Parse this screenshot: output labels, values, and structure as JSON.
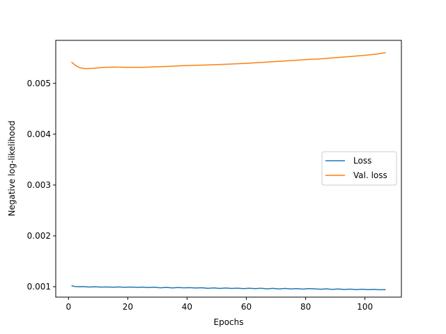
{
  "chart_data": {
    "type": "line",
    "xlabel": "Epochs",
    "ylabel": "Negative log-likelihood",
    "xlim": [
      -4.3,
      112.3
    ],
    "ylim": [
      0.000795,
      0.005846
    ],
    "x_ticks": [
      0,
      20,
      40,
      60,
      80,
      100
    ],
    "y_ticks": [
      0.001,
      0.002,
      0.003,
      0.004,
      0.005
    ],
    "y_tick_labels": [
      "0.001",
      "0.002",
      "0.003",
      "0.004",
      "0.005"
    ],
    "grid": false,
    "legend_position": "center-right",
    "series": [
      {
        "name": "Loss",
        "color": "#1f77b4",
        "points": [
          [
            1,
            0.00102
          ],
          [
            2,
            0.001005
          ],
          [
            3,
            0.001
          ],
          [
            5,
            0.001002
          ],
          [
            7,
            0.000993
          ],
          [
            9,
            0.000998
          ],
          [
            11,
            0.000992
          ],
          [
            13,
            0.000996
          ],
          [
            15,
            0.00099
          ],
          [
            17,
            0.000995
          ],
          [
            19,
            0.000988
          ],
          [
            21,
            0.000993
          ],
          [
            23,
            0.000986
          ],
          [
            25,
            0.000992
          ],
          [
            27,
            0.000983
          ],
          [
            29,
            0.00099
          ],
          [
            31,
            0.000978
          ],
          [
            33,
            0.000987
          ],
          [
            35,
            0.000976
          ],
          [
            37,
            0.000984
          ],
          [
            39,
            0.000978
          ],
          [
            41,
            0.000981
          ],
          [
            43,
            0.000974
          ],
          [
            45,
            0.00098
          ],
          [
            47,
            0.000968
          ],
          [
            49,
            0.000977
          ],
          [
            51,
            0.000966
          ],
          [
            53,
            0.000975
          ],
          [
            55,
            0.000966
          ],
          [
            57,
            0.000972
          ],
          [
            59,
            0.000963
          ],
          [
            61,
            0.00097
          ],
          [
            63,
            0.000963
          ],
          [
            65,
            0.000969
          ],
          [
            67,
            0.000958
          ],
          [
            69,
            0.000968
          ],
          [
            71,
            0.000956
          ],
          [
            73,
            0.000966
          ],
          [
            75,
            0.000956
          ],
          [
            77,
            0.000962
          ],
          [
            79,
            0.000953
          ],
          [
            81,
            0.000962
          ],
          [
            83,
            0.000957
          ],
          [
            85,
            0.000951
          ],
          [
            87,
            0.000957
          ],
          [
            89,
            0.000948
          ],
          [
            91,
            0.000955
          ],
          [
            93,
            0.000946
          ],
          [
            95,
            0.000952
          ],
          [
            97,
            0.000943
          ],
          [
            99,
            0.00095
          ],
          [
            101,
            0.000942
          ],
          [
            103,
            0.000948
          ],
          [
            105,
            0.00094
          ],
          [
            107,
            0.000943
          ]
        ]
      },
      {
        "name": "Val. loss",
        "color": "#ff7f0e",
        "points": [
          [
            1,
            0.00542
          ],
          [
            2,
            0.00537
          ],
          [
            3,
            0.00533
          ],
          [
            4,
            0.005305
          ],
          [
            5,
            0.005295
          ],
          [
            6,
            0.00529
          ],
          [
            8,
            0.005295
          ],
          [
            10,
            0.005305
          ],
          [
            12,
            0.005315
          ],
          [
            15,
            0.00532
          ],
          [
            20,
            0.005315
          ],
          [
            25,
            0.005315
          ],
          [
            30,
            0.005325
          ],
          [
            35,
            0.005338
          ],
          [
            40,
            0.005352
          ],
          [
            45,
            0.005358
          ],
          [
            50,
            0.005368
          ],
          [
            55,
            0.005381
          ],
          [
            60,
            0.005395
          ],
          [
            65,
            0.005412
          ],
          [
            70,
            0.00543
          ],
          [
            75,
            0.005448
          ],
          [
            80,
            0.005468
          ],
          [
            85,
            0.005482
          ],
          [
            90,
            0.005505
          ],
          [
            95,
            0.005528
          ],
          [
            100,
            0.005551
          ],
          [
            104,
            0.005578
          ],
          [
            107,
            0.005605
          ]
        ]
      }
    ]
  }
}
